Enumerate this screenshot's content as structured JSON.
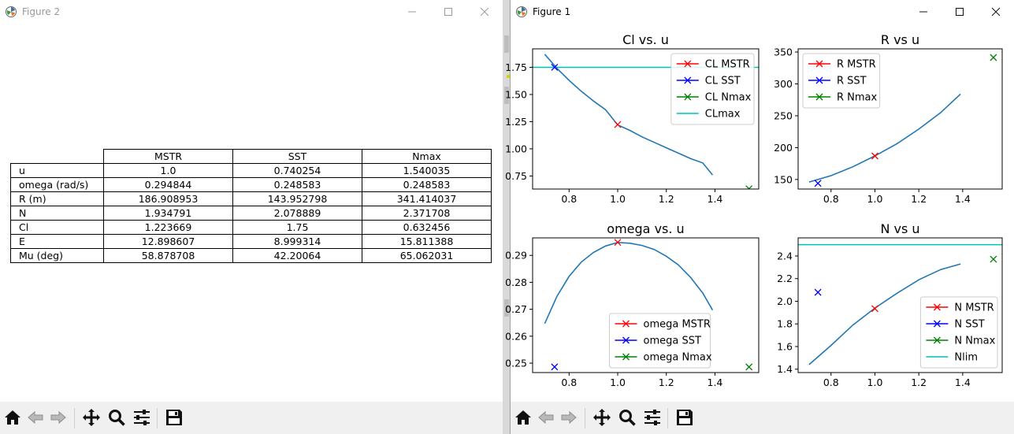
{
  "fig2": {
    "title": "Figure 2",
    "table": {
      "columns": [
        "MSTR",
        "SST",
        "Nmax"
      ],
      "rows": [
        {
          "label": "u",
          "values": [
            "1.0",
            "0.740254",
            "1.540035"
          ]
        },
        {
          "label": "omega (rad/s)",
          "values": [
            "0.294844",
            "0.248583",
            "0.248583"
          ]
        },
        {
          "label": "R (m)",
          "values": [
            "186.908953",
            "143.952798",
            "341.414037"
          ]
        },
        {
          "label": "N",
          "values": [
            "1.934791",
            "2.078889",
            "2.371708"
          ]
        },
        {
          "label": "Cl",
          "values": [
            "1.223669",
            "1.75",
            "0.632456"
          ]
        },
        {
          "label": "E",
          "values": [
            "12.898607",
            "8.999314",
            "15.811388"
          ]
        },
        {
          "label": "Mu (deg)",
          "values": [
            "58.878708",
            "42.20064",
            "65.062031"
          ]
        }
      ]
    }
  },
  "fig1": {
    "title": "Figure 1"
  },
  "toolbar_icons": [
    "home-icon",
    "back-arrow-icon",
    "forward-arrow-icon",
    "pan-icon",
    "zoom-icon",
    "configure-subplots-icon",
    "save-icon"
  ],
  "colors": {
    "curve": "#1f77b4",
    "mstr": "#ff0000",
    "sst": "#0000ff",
    "nmax": "#008000",
    "limit": "#00bfbf"
  },
  "chart_data": [
    {
      "type": "line",
      "title": "Cl vs. u",
      "xlim": [
        0.65,
        1.58
      ],
      "ylim": [
        0.63,
        1.92
      ],
      "xticks": [
        0.8,
        1.0,
        1.2,
        1.4
      ],
      "yticks": [
        0.75,
        1.0,
        1.25,
        1.5,
        1.75
      ],
      "ytick_labels": [
        "0.75",
        "1.00",
        "1.25",
        "1.50",
        "1.75"
      ],
      "curve": {
        "x": [
          0.7,
          0.75,
          0.8,
          0.85,
          0.9,
          0.95,
          1.0,
          1.05,
          1.1,
          1.15,
          1.2,
          1.25,
          1.3,
          1.35,
          1.39
        ],
        "y": [
          1.87,
          1.74,
          1.63,
          1.53,
          1.44,
          1.36,
          1.22,
          1.17,
          1.11,
          1.06,
          1.01,
          0.96,
          0.91,
          0.87,
          0.76
        ]
      },
      "markers": [
        {
          "name": "CL MSTR",
          "x": 1.0,
          "y": 1.223669,
          "color": "#ff0000"
        },
        {
          "name": "CL SST",
          "x": 0.740254,
          "y": 1.75,
          "color": "#0000ff"
        },
        {
          "name": "CL Nmax",
          "x": 1.540035,
          "y": 0.632456,
          "color": "#008000"
        }
      ],
      "hline": {
        "name": "CLmax",
        "y": 1.75,
        "color": "#00bfbf"
      },
      "legend": [
        {
          "label": "CL MSTR",
          "color": "#ff0000",
          "kind": "marker"
        },
        {
          "label": "CL SST",
          "color": "#0000ff",
          "kind": "marker"
        },
        {
          "label": "CL Nmax",
          "color": "#008000",
          "kind": "marker"
        },
        {
          "label": "CLmax",
          "color": "#00bfbf",
          "kind": "line"
        }
      ],
      "legend_loc": "upper right"
    },
    {
      "type": "line",
      "title": "R vs u",
      "xlim": [
        0.65,
        1.58
      ],
      "ylim": [
        135,
        355
      ],
      "xticks": [
        0.8,
        1.0,
        1.2,
        1.4
      ],
      "yticks": [
        150,
        200,
        250,
        300,
        350
      ],
      "ytick_labels": [
        "150",
        "200",
        "250",
        "300",
        "350"
      ],
      "curve": {
        "x": [
          0.7,
          0.8,
          0.9,
          1.0,
          1.1,
          1.2,
          1.3,
          1.39
        ],
        "y": [
          146,
          156,
          170,
          187,
          206,
          229,
          255,
          284
        ]
      },
      "markers": [
        {
          "name": "R MSTR",
          "x": 1.0,
          "y": 186.908953,
          "color": "#ff0000"
        },
        {
          "name": "R SST",
          "x": 0.740254,
          "y": 143.952798,
          "color": "#0000ff"
        },
        {
          "name": "R Nmax",
          "x": 1.540035,
          "y": 341.414037,
          "color": "#008000"
        }
      ],
      "hline": null,
      "legend": [
        {
          "label": "R MSTR",
          "color": "#ff0000",
          "kind": "marker"
        },
        {
          "label": "R SST",
          "color": "#0000ff",
          "kind": "marker"
        },
        {
          "label": "R Nmax",
          "color": "#008000",
          "kind": "marker"
        }
      ],
      "legend_loc": "upper left"
    },
    {
      "type": "line",
      "title": "omega vs. u",
      "xlim": [
        0.65,
        1.58
      ],
      "ylim": [
        0.2465,
        0.2965
      ],
      "xticks": [
        0.8,
        1.0,
        1.2,
        1.4
      ],
      "yticks": [
        0.25,
        0.26,
        0.27,
        0.28,
        0.29
      ],
      "ytick_labels": [
        "0.25",
        "0.26",
        "0.27",
        "0.28",
        "0.29"
      ],
      "curve": {
        "x": [
          0.7,
          0.75,
          0.8,
          0.85,
          0.9,
          0.95,
          1.0,
          1.05,
          1.1,
          1.15,
          1.2,
          1.25,
          1.3,
          1.35,
          1.39
        ],
        "y": [
          0.2647,
          0.2748,
          0.2822,
          0.2875,
          0.2911,
          0.2935,
          0.2948,
          0.2945,
          0.2937,
          0.2922,
          0.2897,
          0.2864,
          0.2818,
          0.276,
          0.2697
        ]
      },
      "markers": [
        {
          "name": "omega MSTR",
          "x": 1.0,
          "y": 0.294844,
          "color": "#ff0000"
        },
        {
          "name": "omega SST",
          "x": 0.740254,
          "y": 0.248583,
          "color": "#0000ff"
        },
        {
          "name": "omega Nmax",
          "x": 1.540035,
          "y": 0.248583,
          "color": "#008000"
        }
      ],
      "hline": null,
      "legend": [
        {
          "label": "omega MSTR",
          "color": "#ff0000",
          "kind": "marker"
        },
        {
          "label": "omega SST",
          "color": "#0000ff",
          "kind": "marker"
        },
        {
          "label": "omega Nmax",
          "color": "#008000",
          "kind": "marker"
        }
      ],
      "legend_loc": "lower center"
    },
    {
      "type": "line",
      "title": "N vs u",
      "xlim": [
        0.65,
        1.58
      ],
      "ylim": [
        1.37,
        2.56
      ],
      "xticks": [
        0.8,
        1.0,
        1.2,
        1.4
      ],
      "yticks": [
        1.4,
        1.6,
        1.8,
        2.0,
        2.2,
        2.4
      ],
      "ytick_labels": [
        "1.4",
        "1.6",
        "1.8",
        "2.0",
        "2.2",
        "2.4"
      ],
      "curve": {
        "x": [
          0.7,
          0.8,
          0.9,
          1.0,
          1.1,
          1.2,
          1.3,
          1.39
        ],
        "y": [
          1.44,
          1.61,
          1.79,
          1.94,
          2.07,
          2.19,
          2.28,
          2.33
        ]
      },
      "markers": [
        {
          "name": "N MSTR",
          "x": 1.0,
          "y": 1.934791,
          "color": "#ff0000"
        },
        {
          "name": "N SST",
          "x": 0.740254,
          "y": 2.078889,
          "color": "#0000ff"
        },
        {
          "name": "N Nmax",
          "x": 1.540035,
          "y": 2.371708,
          "color": "#008000"
        }
      ],
      "hline": {
        "name": "Nlim",
        "y": 2.5,
        "color": "#00bfbf"
      },
      "legend": [
        {
          "label": "N MSTR",
          "color": "#ff0000",
          "kind": "marker"
        },
        {
          "label": "N SST",
          "color": "#0000ff",
          "kind": "marker"
        },
        {
          "label": "N Nmax",
          "color": "#008000",
          "kind": "marker"
        },
        {
          "label": "Nlim",
          "color": "#00bfbf",
          "kind": "line"
        }
      ],
      "legend_loc": "lower right"
    }
  ]
}
